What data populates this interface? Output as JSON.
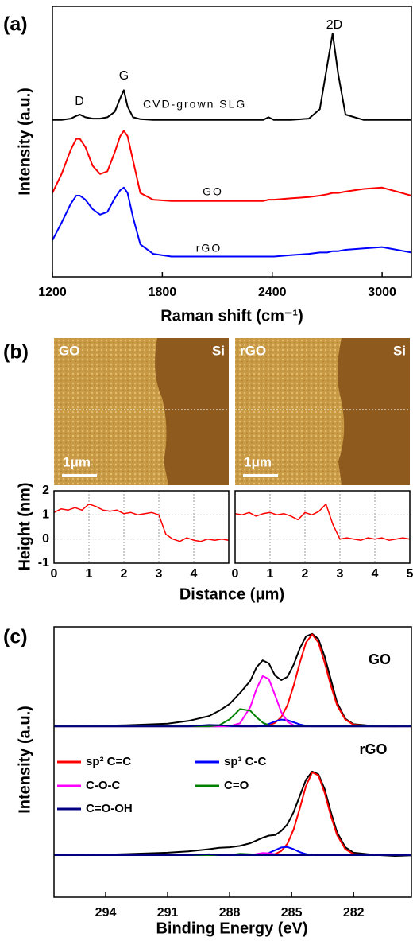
{
  "afm_images": [
    {
      "sample": "GO",
      "substrate": "Si",
      "scale_bar": "1μm"
    },
    {
      "sample": "rGO",
      "substrate": "Si",
      "scale_bar": "1μm"
    }
  ],
  "chart_data": [
    {
      "type": "line",
      "panel_label": "(a)",
      "x_label": "Raman shift (cm⁻¹)",
      "y_label": "Intensity (a.u.)",
      "xlim": [
        1200,
        3160
      ],
      "ylim": [
        0,
        100
      ],
      "xticks": [
        1200,
        1800,
        2400,
        3000
      ],
      "peak_labels": [
        "D",
        "G",
        "2D"
      ],
      "x": [
        1200,
        1250,
        1300,
        1330,
        1350,
        1380,
        1420,
        1460,
        1500,
        1540,
        1570,
        1590,
        1610,
        1640,
        1680,
        1750,
        1850,
        2000,
        2200,
        2350,
        2380,
        2410,
        2500,
        2600,
        2660,
        2700,
        2730,
        2760,
        2800,
        2900,
        3000,
        3080,
        3160
      ],
      "series": [
        {
          "label": "CVD-grown SLG",
          "color": "#000000",
          "values": [
            58,
            58,
            58.5,
            59.5,
            60,
            59,
            58.5,
            58.5,
            59,
            61,
            66,
            69,
            63,
            59,
            58.3,
            58,
            58,
            58,
            58,
            58,
            59,
            58,
            58,
            58.5,
            62,
            78,
            90,
            75,
            60,
            58,
            58,
            58,
            58
          ]
        },
        {
          "label": "GO",
          "color": "#ff0000",
          "values": [
            31,
            38,
            47,
            51,
            51,
            48,
            41,
            38,
            39,
            46,
            52,
            54,
            52,
            43,
            31,
            28.5,
            28,
            28,
            28,
            28,
            28.5,
            28.5,
            29,
            29.5,
            30,
            30.5,
            31,
            31,
            31.5,
            32.5,
            33,
            31.5,
            30
          ]
        },
        {
          "label": "rGO",
          "color": "#0000ff",
          "values": [
            13.5,
            20,
            27,
            30,
            30,
            28.5,
            25,
            23,
            24,
            29,
            32,
            33,
            31,
            22,
            12,
            8.5,
            7.5,
            7.5,
            7.5,
            7.5,
            7.5,
            7.5,
            8,
            8.5,
            9,
            9,
            9.5,
            9.5,
            10,
            10.5,
            11,
            10,
            9
          ]
        }
      ]
    },
    {
      "type": "line",
      "panel_label": "(b)",
      "x_label": "Distance (μm)",
      "y_label": "Height (nm)",
      "xlim": [
        0,
        5
      ],
      "ylim": [
        -1,
        2
      ],
      "xticks": [
        0,
        1,
        2,
        3,
        4
      ],
      "yticks": [
        -1,
        0,
        1,
        2
      ],
      "grid": true,
      "x": [
        0,
        0.2,
        0.4,
        0.6,
        0.8,
        1,
        1.2,
        1.4,
        1.6,
        1.8,
        2,
        2.2,
        2.4,
        2.6,
        2.8,
        3,
        3.2,
        3.4,
        3.6,
        3.8,
        4,
        4.2,
        4.4,
        4.6,
        4.8,
        5
      ],
      "series": [
        {
          "color": "#ff0000",
          "values": [
            1.1,
            1.25,
            1.2,
            1.3,
            1.2,
            1.45,
            1.35,
            1.2,
            1.15,
            1.2,
            1.05,
            1.1,
            1,
            1.05,
            1.1,
            1,
            0.2,
            0,
            -0.1,
            0.05,
            -0.05,
            -0.1,
            0,
            -0.05,
            0,
            -0.05
          ]
        }
      ]
    },
    {
      "type": "line",
      "xlim": [
        0,
        5
      ],
      "ylim": [
        -1,
        2
      ],
      "xticks": [
        0,
        1,
        2,
        3,
        4,
        5
      ],
      "grid": true,
      "x": [
        0,
        0.2,
        0.4,
        0.6,
        0.8,
        1,
        1.2,
        1.4,
        1.6,
        1.8,
        2,
        2.2,
        2.4,
        2.6,
        2.8,
        3,
        3.2,
        3.4,
        3.6,
        3.8,
        4,
        4.2,
        4.4,
        4.6,
        4.8,
        5
      ],
      "series": [
        {
          "color": "#ff0000",
          "values": [
            1.05,
            1,
            1.1,
            0.95,
            1.05,
            1.1,
            1,
            1.05,
            0.95,
            0.8,
            1.1,
            1,
            1.15,
            1.45,
            0.6,
            0,
            0.05,
            0,
            -0.05,
            0.05,
            0,
            0.05,
            -0.05,
            0,
            0.05,
            0
          ]
        }
      ]
    },
    {
      "type": "line",
      "panel_label": "(c)",
      "x_label": "Binding Energy (eV)",
      "y_label": "Intensity (a.u.)",
      "xlim": [
        296.5,
        279.2
      ],
      "ylim": [
        0,
        100
      ],
      "xticks": [
        294,
        291,
        288,
        285,
        282
      ],
      "legend": [
        {
          "name": "sp² C=C",
          "color": "#ff0000"
        },
        {
          "name": "sp³ C-C",
          "color": "#0000ff"
        },
        {
          "name": "C-O-C",
          "color": "#ff00ff"
        },
        {
          "name": "C=O",
          "color": "#008000"
        },
        {
          "name": "C=O-OH",
          "color": "#000080"
        }
      ],
      "x": [
        296.5,
        295,
        293,
        291,
        290,
        289,
        288.5,
        288,
        287.5,
        287,
        286.7,
        286.4,
        286.1,
        285.8,
        285.5,
        285.2,
        284.9,
        284.6,
        284.3,
        284,
        283.7,
        283.4,
        283.1,
        282.8,
        282.4,
        282,
        281,
        280,
        279.2
      ],
      "spectra": [
        {
          "label": "GO",
          "color": "#000000",
          "measured": [
            63.5,
            63.3,
            63.6,
            64.2,
            65.2,
            67,
            69,
            71.5,
            75.5,
            80,
            85,
            87.6,
            86.5,
            82,
            80.3,
            81.5,
            86,
            92,
            96.5,
            97.4,
            95.5,
            89,
            80.5,
            72,
            66,
            64,
            63.3,
            63.2,
            63.3
          ],
          "components": [
            [
              63.2,
              63.2,
              63.2,
              63.2,
              63.2,
              63.2,
              63.2,
              63.2,
              63.2,
              63.2,
              63.2,
              63.3,
              63.6,
              64.5,
              66.6,
              71,
              78.2,
              86.7,
              94.2,
              97.2,
              94.2,
              86.7,
              78.2,
              71,
              65.7,
              63.8,
              63.2,
              63.2,
              63.2
            ],
            [
              63.2,
              63.2,
              63.2,
              63.2,
              63.2,
              63.2,
              63.2,
              63.2,
              63.2,
              63.2,
              63.2,
              63.5,
              64.1,
              65,
              65.7,
              65.5,
              64.7,
              63.9,
              63.4,
              63.2,
              63.2,
              63.2,
              63.2,
              63.2,
              63.2,
              63.2,
              63.2,
              63.2,
              63.2
            ],
            [
              63.2,
              63.2,
              63.2,
              63.2,
              63.2,
              63.2,
              63.2,
              63.3,
              64.3,
              70.3,
              77,
              81.8,
              80.7,
              74.7,
              68.5,
              64.9,
              63.6,
              63.2,
              63.2,
              63.2,
              63.2,
              63.2,
              63.2,
              63.2,
              63.2,
              63.2,
              63.2,
              63.2,
              63.2
            ],
            [
              63.2,
              63.2,
              63.2,
              63.2,
              63.2,
              63.2,
              63.6,
              65.8,
              69.6,
              69,
              66.6,
              64.6,
              63.6,
              63.2,
              63.2,
              63.2,
              63.2,
              63.2,
              63.2,
              63.2,
              63.2,
              63.2,
              63.2,
              63.2,
              63.2,
              63.2,
              63.2,
              63.2,
              63.2
            ],
            [
              63.2,
              63.2,
              63.2,
              63.2,
              63.2,
              63.7,
              63.6,
              63.4,
              63.2,
              63.2,
              63.2,
              63.2,
              63.2,
              63.2,
              63.2,
              63.2,
              63.2,
              63.2,
              63.2,
              63.2,
              63.2,
              63.2,
              63.2,
              63.2,
              63.2,
              63.2,
              63.2,
              63.2,
              63.2
            ]
          ]
        },
        {
          "label": "rGO",
          "color": "#000000",
          "measured": [
            15.8,
            15.6,
            16,
            16.5,
            17,
            17.8,
            18.3,
            18.5,
            19,
            20,
            21,
            22,
            22.8,
            23,
            24.5,
            27,
            31.5,
            37.5,
            43.5,
            46.5,
            45.5,
            40,
            31.5,
            24,
            18.5,
            16.5,
            15.7,
            15.3,
            15.5
          ],
          "components": [
            [
              15.6,
              15.6,
              15.6,
              15.6,
              15.6,
              15.6,
              15.6,
              15.6,
              15.6,
              15.6,
              15.6,
              15.6,
              15.6,
              16,
              17.1,
              19.8,
              25.1,
              32.9,
              41.2,
              46.2,
              45.1,
              38.6,
              30.1,
              23,
              17.8,
              16,
              15.6,
              15.6,
              15.6
            ],
            [
              15.6,
              15.6,
              15.6,
              15.6,
              15.6,
              15.6,
              15.6,
              15.6,
              15.6,
              15.6,
              15.6,
              15.6,
              16.4,
              17.4,
              18.4,
              18.6,
              17.8,
              16.7,
              16,
              15.6,
              15.6,
              15.6,
              15.6,
              15.6,
              15.6,
              15.6,
              15.6,
              15.6,
              15.6
            ],
            [
              15.6,
              15.6,
              15.6,
              15.6,
              15.6,
              15.6,
              15.6,
              15.6,
              15.6,
              15.6,
              16,
              16.4,
              16.3,
              15.9,
              15.6,
              15.6,
              15.6,
              15.6,
              15.6,
              15.6,
              15.6,
              15.6,
              15.6,
              15.6,
              15.6,
              15.6,
              15.6,
              15.6,
              15.6
            ],
            [
              15.6,
              15.6,
              15.6,
              15.6,
              15.6,
              15.6,
              15.6,
              15.6,
              16.1,
              15.9,
              15.6,
              15.6,
              15.6,
              15.6,
              15.6,
              15.6,
              15.6,
              15.6,
              15.6,
              15.6,
              15.6,
              15.6,
              15.6,
              15.6,
              15.6,
              15.6,
              15.6,
              15.6,
              15.6
            ],
            [
              15.6,
              15.6,
              15.6,
              15.6,
              15.6,
              15.9,
              15.6,
              15.6,
              15.6,
              15.6,
              15.6,
              15.6,
              15.6,
              15.6,
              15.6,
              15.6,
              15.6,
              15.6,
              15.6,
              15.6,
              15.6,
              15.6,
              15.6,
              15.6,
              15.6,
              15.6,
              15.6,
              15.6,
              15.6
            ]
          ]
        }
      ]
    }
  ]
}
